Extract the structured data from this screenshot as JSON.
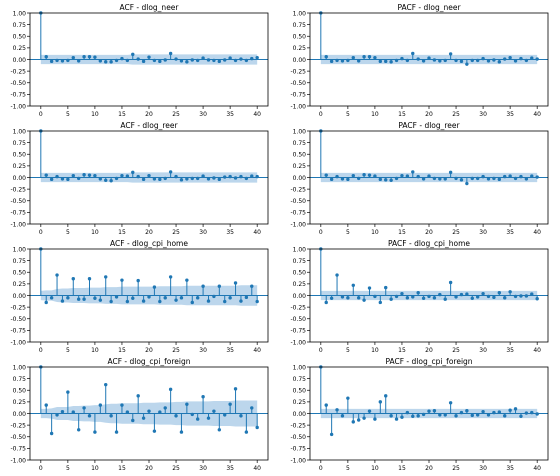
{
  "colors": {
    "stem": "#1f77b4",
    "band": "#a6c8e6",
    "zero_line": "#1f77b4",
    "axis": "#000000"
  },
  "chart_data": [
    {
      "type": "stem",
      "title": "ACF - dlog_neer",
      "xlim": [
        -2,
        42
      ],
      "ylim": [
        -1,
        1
      ],
      "xticks": [
        0,
        5,
        10,
        15,
        20,
        25,
        30,
        35,
        40
      ],
      "yticks": [
        -1,
        -0.75,
        -0.5,
        -0.25,
        0,
        0.25,
        0.5,
        0.75,
        1
      ],
      "ytick_labels": [
        "-1.00",
        "-0.75",
        "-0.50",
        "-0.25",
        "0.00",
        "0.25",
        "0.50",
        "0.75",
        "1.00"
      ],
      "values": [
        1,
        0.06,
        -0.04,
        -0.02,
        -0.03,
        -0.02,
        0.04,
        -0.03,
        0.06,
        0.06,
        0.05,
        -0.03,
        -0.05,
        -0.05,
        -0.02,
        0.02,
        -0.02,
        0.11,
        0.01,
        -0.04,
        0.05,
        -0.02,
        -0.04,
        -0.01,
        0.13,
        0.01,
        -0.03,
        -0.05,
        -0.01,
        -0.02,
        0.03,
        -0.01,
        -0.02,
        -0.04,
        -0.01,
        0.03,
        -0.02,
        0.01,
        -0.02,
        0.02,
        0.04
      ],
      "band": [
        0.1,
        0.1,
        0.1,
        0.1,
        0.1,
        0.1,
        0.1,
        0.1,
        0.1,
        0.1,
        0.1,
        0.1,
        0.1,
        0.1,
        0.1,
        0.1,
        0.1,
        0.11,
        0.11,
        0.11,
        0.11,
        0.11,
        0.11,
        0.11,
        0.11,
        0.11,
        0.11,
        0.11,
        0.11,
        0.11,
        0.11,
        0.11,
        0.11,
        0.11,
        0.11,
        0.11,
        0.11,
        0.11,
        0.11,
        0.11,
        0.11
      ]
    },
    {
      "type": "stem",
      "title": "PACF - dlog_neer",
      "xlim": [
        -2,
        42
      ],
      "ylim": [
        -1,
        1
      ],
      "xticks": [
        0,
        5,
        10,
        15,
        20,
        25,
        30,
        35,
        40
      ],
      "yticks": [
        -1,
        -0.75,
        -0.5,
        -0.25,
        0,
        0.25,
        0.5,
        0.75,
        1
      ],
      "ytick_labels": [
        "-1.00",
        "-0.75",
        "-0.50",
        "-0.25",
        "0.00",
        "0.25",
        "0.50",
        "0.75",
        "1.00"
      ],
      "values": [
        1,
        0.06,
        -0.04,
        -0.02,
        -0.03,
        -0.02,
        0.04,
        -0.03,
        0.06,
        0.06,
        0.04,
        -0.04,
        -0.04,
        -0.05,
        -0.02,
        0.02,
        -0.02,
        0.13,
        0.01,
        -0.03,
        0.03,
        -0.01,
        -0.03,
        -0.02,
        0.12,
        -0.02,
        -0.04,
        -0.1,
        -0.02,
        -0.02,
        0.02,
        -0.03,
        -0.01,
        -0.05,
        0.01,
        0.04,
        -0.03,
        0.02,
        -0.02,
        0.03,
        0.01
      ],
      "band": [
        0.1,
        0.1,
        0.1,
        0.1,
        0.1,
        0.1,
        0.1,
        0.1,
        0.1,
        0.1,
        0.1,
        0.1,
        0.1,
        0.1,
        0.1,
        0.1,
        0.1,
        0.1,
        0.1,
        0.1,
        0.1,
        0.1,
        0.1,
        0.1,
        0.1,
        0.1,
        0.1,
        0.1,
        0.1,
        0.1,
        0.1,
        0.1,
        0.1,
        0.1,
        0.1,
        0.1,
        0.1,
        0.1,
        0.1,
        0.1,
        0.1
      ]
    },
    {
      "type": "stem",
      "title": "ACF - dlog_reer",
      "xlim": [
        -2,
        42
      ],
      "ylim": [
        -1,
        1
      ],
      "xticks": [
        0,
        5,
        10,
        15,
        20,
        25,
        30,
        35,
        40
      ],
      "yticks": [
        -1,
        -0.75,
        -0.5,
        -0.25,
        0,
        0.25,
        0.5,
        0.75,
        1
      ],
      "ytick_labels": [
        "-1.00",
        "-0.75",
        "-0.50",
        "-0.25",
        "0.00",
        "0.25",
        "0.50",
        "0.75",
        "1.00"
      ],
      "values": [
        1,
        0.05,
        -0.04,
        0.02,
        -0.03,
        -0.04,
        0.04,
        -0.02,
        0.06,
        0.05,
        0.04,
        -0.03,
        -0.06,
        -0.07,
        -0.02,
        0.04,
        0.03,
        0.11,
        0.02,
        -0.04,
        0.04,
        -0.03,
        -0.04,
        -0.02,
        0.12,
        0.02,
        -0.05,
        -0.03,
        -0.02,
        -0.02,
        0.03,
        -0.03,
        -0.01,
        -0.04,
        0.01,
        0.02,
        -0.01,
        0.02,
        -0.02,
        0.03,
        0.02
      ],
      "band": [
        0.1,
        0.1,
        0.1,
        0.1,
        0.1,
        0.1,
        0.1,
        0.1,
        0.1,
        0.1,
        0.1,
        0.1,
        0.1,
        0.1,
        0.1,
        0.1,
        0.1,
        0.11,
        0.11,
        0.11,
        0.11,
        0.11,
        0.11,
        0.11,
        0.11,
        0.11,
        0.11,
        0.11,
        0.11,
        0.11,
        0.11,
        0.11,
        0.11,
        0.11,
        0.11,
        0.11,
        0.11,
        0.11,
        0.11,
        0.11,
        0.11
      ]
    },
    {
      "type": "stem",
      "title": "PACF - dlog_reer",
      "xlim": [
        -2,
        42
      ],
      "ylim": [
        -1,
        1
      ],
      "xticks": [
        0,
        5,
        10,
        15,
        20,
        25,
        30,
        35,
        40
      ],
      "yticks": [
        -1,
        -0.75,
        -0.5,
        -0.25,
        0,
        0.25,
        0.5,
        0.75,
        1
      ],
      "ytick_labels": [
        "-1.00",
        "-0.75",
        "-0.50",
        "-0.25",
        "0.00",
        "0.25",
        "0.50",
        "0.75",
        "1.00"
      ],
      "values": [
        1,
        0.05,
        -0.04,
        0.02,
        -0.03,
        -0.04,
        0.04,
        -0.02,
        0.06,
        0.05,
        0.03,
        -0.04,
        -0.05,
        -0.06,
        -0.02,
        0.04,
        0.03,
        0.12,
        0.02,
        -0.03,
        0.03,
        -0.02,
        -0.03,
        -0.03,
        0.11,
        -0.02,
        -0.05,
        -0.13,
        -0.02,
        -0.02,
        0.02,
        -0.03,
        -0.02,
        -0.04,
        0.02,
        0.03,
        -0.02,
        0.02,
        -0.03,
        0.03,
        0.01
      ],
      "band": [
        0.1,
        0.1,
        0.1,
        0.1,
        0.1,
        0.1,
        0.1,
        0.1,
        0.1,
        0.1,
        0.1,
        0.1,
        0.1,
        0.1,
        0.1,
        0.1,
        0.1,
        0.1,
        0.1,
        0.1,
        0.1,
        0.1,
        0.1,
        0.1,
        0.1,
        0.1,
        0.1,
        0.1,
        0.1,
        0.1,
        0.1,
        0.1,
        0.1,
        0.1,
        0.1,
        0.1,
        0.1,
        0.1,
        0.1,
        0.1,
        0.1
      ]
    },
    {
      "type": "stem",
      "title": "ACF - dlog_cpi_home",
      "xlim": [
        -2,
        42
      ],
      "ylim": [
        -1,
        1
      ],
      "xticks": [
        0,
        5,
        10,
        15,
        20,
        25,
        30,
        35,
        40
      ],
      "yticks": [
        -1,
        -0.75,
        -0.5,
        -0.25,
        0,
        0.25,
        0.5,
        0.75,
        1
      ],
      "ytick_labels": [
        "-1.00",
        "-0.75",
        "-0.50",
        "-0.25",
        "0.00",
        "0.25",
        "0.50",
        "0.75",
        "1.00"
      ],
      "values": [
        1,
        -0.15,
        -0.05,
        0.44,
        -0.12,
        -0.05,
        0.36,
        -0.08,
        -0.08,
        0.36,
        -0.06,
        -0.1,
        0.4,
        -0.13,
        -0.03,
        0.33,
        -0.13,
        -0.06,
        0.32,
        -0.12,
        -0.03,
        0.18,
        -0.13,
        -0.05,
        0.4,
        -0.1,
        -0.05,
        0.33,
        -0.15,
        -0.05,
        0.2,
        -0.12,
        -0.02,
        0.2,
        -0.13,
        -0.05,
        0.27,
        -0.12,
        -0.04,
        0.2,
        -0.13
      ],
      "band": [
        0.1,
        0.11,
        0.11,
        0.14,
        0.15,
        0.15,
        0.16,
        0.16,
        0.16,
        0.17,
        0.17,
        0.17,
        0.18,
        0.18,
        0.18,
        0.19,
        0.19,
        0.19,
        0.19,
        0.19,
        0.19,
        0.19,
        0.2,
        0.2,
        0.2,
        0.2,
        0.2,
        0.21,
        0.21,
        0.21,
        0.21,
        0.21,
        0.21,
        0.21,
        0.21,
        0.21,
        0.21,
        0.22,
        0.22,
        0.22,
        0.22
      ]
    },
    {
      "type": "stem",
      "title": "PACF - dlog_cpi_home",
      "xlim": [
        -2,
        42
      ],
      "ylim": [
        -1,
        1
      ],
      "xticks": [
        0,
        5,
        10,
        15,
        20,
        25,
        30,
        35,
        40
      ],
      "yticks": [
        -1,
        -0.75,
        -0.5,
        -0.25,
        0,
        0.25,
        0.5,
        0.75,
        1
      ],
      "ytick_labels": [
        "-1.00",
        "-0.75",
        "-0.50",
        "-0.25",
        "0.00",
        "0.25",
        "0.50",
        "0.75",
        "1.00"
      ],
      "values": [
        1,
        -0.15,
        -0.06,
        0.44,
        -0.03,
        -0.05,
        0.22,
        -0.05,
        -0.1,
        0.16,
        -0.02,
        -0.15,
        0.17,
        -0.08,
        -0.02,
        0.04,
        -0.05,
        -0.03,
        0.06,
        -0.06,
        -0.02,
        -0.05,
        0.02,
        -0.08,
        0.28,
        -0.03,
        0.02,
        0.03,
        -0.06,
        -0.03,
        0.04,
        -0.02,
        -0.04,
        0.06,
        -0.05,
        0.08,
        -0.02,
        -0.01,
        -0.01,
        0.03,
        -0.07
      ],
      "band": [
        0.1,
        0.1,
        0.1,
        0.1,
        0.1,
        0.1,
        0.1,
        0.1,
        0.1,
        0.1,
        0.1,
        0.1,
        0.1,
        0.1,
        0.1,
        0.1,
        0.1,
        0.1,
        0.1,
        0.1,
        0.1,
        0.1,
        0.1,
        0.1,
        0.1,
        0.1,
        0.1,
        0.1,
        0.1,
        0.1,
        0.1,
        0.1,
        0.1,
        0.1,
        0.1,
        0.1,
        0.1,
        0.1,
        0.1,
        0.1,
        0.1
      ]
    },
    {
      "type": "stem",
      "title": "ACF - dlog_cpi_foreign",
      "xlim": [
        -2,
        42
      ],
      "ylim": [
        -1,
        1
      ],
      "xticks": [
        0,
        5,
        10,
        15,
        20,
        25,
        30,
        35,
        40
      ],
      "yticks": [
        -1,
        -0.75,
        -0.5,
        -0.25,
        0,
        0.25,
        0.5,
        0.75,
        1
      ],
      "ytick_labels": [
        "-1.00",
        "-0.75",
        "-0.50",
        "-0.25",
        "0.00",
        "0.25",
        "0.50",
        "0.75",
        "1.00"
      ],
      "values": [
        1,
        0.18,
        -0.43,
        -0.03,
        0.04,
        0.46,
        0.03,
        -0.35,
        0.12,
        -0.05,
        -0.4,
        0.18,
        0.62,
        -0.05,
        -0.4,
        0.18,
        0.03,
        -0.15,
        0.38,
        -0.1,
        0.05,
        -0.38,
        0.03,
        0.12,
        0.52,
        -0.05,
        -0.4,
        0.2,
        -0.02,
        -0.12,
        0.36,
        -0.1,
        0.05,
        -0.35,
        -0.03,
        0.2,
        0.53,
        -0.05,
        -0.4,
        0.12,
        -0.3
      ],
      "band": [
        0.1,
        0.1,
        0.11,
        0.14,
        0.14,
        0.14,
        0.16,
        0.16,
        0.17,
        0.17,
        0.18,
        0.18,
        0.2,
        0.21,
        0.21,
        0.22,
        0.22,
        0.22,
        0.22,
        0.23,
        0.23,
        0.23,
        0.24,
        0.24,
        0.24,
        0.25,
        0.25,
        0.26,
        0.26,
        0.26,
        0.26,
        0.26,
        0.27,
        0.27,
        0.27,
        0.27,
        0.28,
        0.28,
        0.28,
        0.28,
        0.28
      ]
    },
    {
      "type": "stem",
      "title": "PACF - dlog_cpi_foreign",
      "xlim": [
        -2,
        42
      ],
      "ylim": [
        -1,
        1
      ],
      "xticks": [
        0,
        5,
        10,
        15,
        20,
        25,
        30,
        35,
        40
      ],
      "yticks": [
        -1,
        -0.75,
        -0.5,
        -0.25,
        0,
        0.25,
        0.5,
        0.75,
        1
      ],
      "ytick_labels": [
        "-1.00",
        "-0.75",
        "-0.50",
        "-0.25",
        "0.00",
        "0.25",
        "0.50",
        "0.75",
        "1.00"
      ],
      "values": [
        1,
        0.18,
        -0.45,
        0.08,
        -0.05,
        0.33,
        -0.18,
        -0.14,
        -0.1,
        0.05,
        -0.12,
        0.25,
        0.38,
        -0.05,
        -0.12,
        -0.08,
        0.02,
        -0.06,
        -0.05,
        -0.02,
        0.05,
        0.06,
        -0.03,
        -0.03,
        0.23,
        -0.05,
        0.02,
        0.06,
        -0.04,
        -0.03,
        0.04,
        -0.03,
        0.02,
        0.03,
        -0.05,
        0.07,
        0.1,
        -0.06,
        0.01,
        0.02,
        -0.01
      ],
      "band": [
        0.1,
        0.1,
        0.1,
        0.1,
        0.1,
        0.1,
        0.1,
        0.1,
        0.1,
        0.1,
        0.1,
        0.1,
        0.1,
        0.1,
        0.1,
        0.1,
        0.1,
        0.1,
        0.1,
        0.1,
        0.1,
        0.1,
        0.1,
        0.1,
        0.1,
        0.1,
        0.1,
        0.1,
        0.1,
        0.1,
        0.1,
        0.1,
        0.1,
        0.1,
        0.1,
        0.1,
        0.1,
        0.1,
        0.1,
        0.1,
        0.1
      ]
    }
  ]
}
